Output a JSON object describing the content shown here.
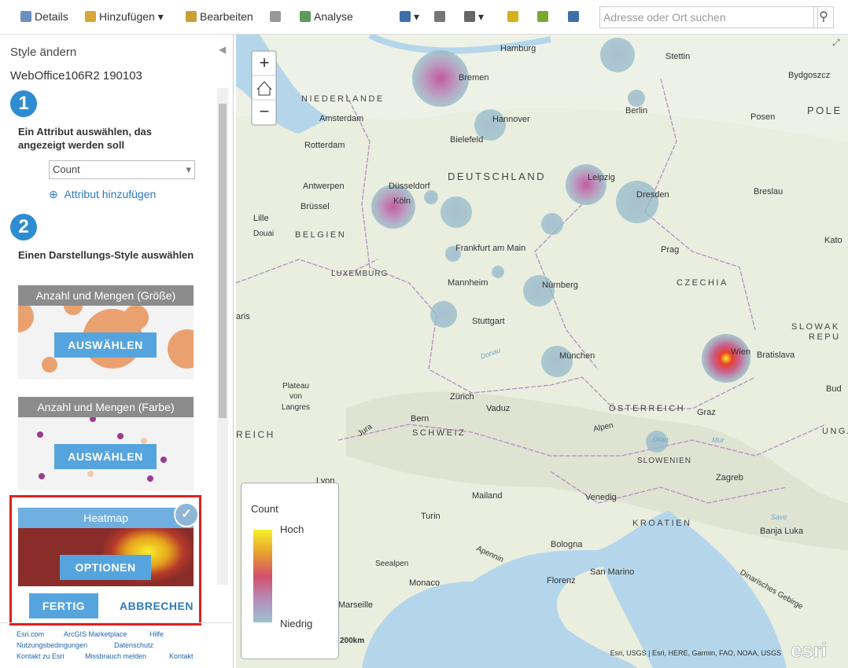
{
  "toolbar": {
    "items": [
      "Details",
      "Hinzufügen",
      "Bearbeiten",
      "Analyse"
    ],
    "search_placeholder": "Adresse oder Ort suchen"
  },
  "panel": {
    "title": "Style ändern",
    "layer": "WebOffice106R2 190103",
    "step1": {
      "number": "1",
      "label": "Ein Attribut auswählen, das angezeigt werden soll",
      "attribute": "Count",
      "add_attribute": "Attribut hinzufügen"
    },
    "step2": {
      "number": "2",
      "label": "Einen Darstellungs-Style auswählen"
    },
    "styles": [
      {
        "name": "Anzahl und Mengen (Größe)",
        "button": "AUSWÄHLEN"
      },
      {
        "name": "Anzahl und Mengen (Farbe)",
        "button": "AUSWÄHLEN"
      },
      {
        "name": "Heatmap",
        "button": "OPTIONEN"
      }
    ],
    "done": "FERTIG",
    "cancel": "ABBRECHEN"
  },
  "footer_links": [
    "Esri.com",
    "ArcGIS Marketplace",
    "Hilfe",
    "Nutzungsbedingungen",
    "Datenschutz",
    "Kontakt zu Esri",
    "Missbrauch melden",
    "Kontakt"
  ],
  "map": {
    "labels": [
      "Hamburg",
      "Stettin",
      "Bremen",
      "Bydgoszcz",
      "NIEDERLANDE",
      "Berlin",
      "POLE",
      "Amsterdam",
      "Hannover",
      "Posen",
      "Rotterdam",
      "Bielefeld",
      "DEUTSCHLAND",
      "Antwerpen",
      "Düsseldorf",
      "Leipzig",
      "Breslau",
      "Brüssel",
      "Köln",
      "Dresden",
      "Lille",
      "Douai",
      "BELGIEN",
      "Kato",
      "Frankfurt am Main",
      "Prag",
      "LUXEMBURG",
      "Mannheim",
      "Nürnberg",
      "CZECHIA",
      "aris",
      "Stuttgart",
      "SLOWAK",
      "REPU",
      "Donau",
      "München",
      "Wien",
      "Bratislava",
      "Plateau",
      "von",
      "Langres",
      "Zürich",
      "Vaduz",
      "ÖSTERREICH",
      "Graz",
      "Bud",
      "Bern",
      "SCHWEIZ",
      "Jura",
      "REICH",
      "Alpen",
      "UNGAR",
      "Drau",
      "Mur",
      "SLOWENIEN",
      "Lyon",
      "Zagreb",
      "Mailand",
      "Venedig",
      "Turin",
      "KROATIEN",
      "Save",
      "Banja Luka",
      "Bologna",
      "Apennin",
      "Seealpen",
      "San Marino",
      "Monaco",
      "Florenz",
      "Dinarisches Gebirge",
      "Marseille"
    ],
    "legend": {
      "title": "Count",
      "high": "Hoch",
      "low": "Niedrig"
    },
    "scale": "200km",
    "attribution": "Esri, USGS | Esri, HERE, Garmin, FAO, NOAA, USGS",
    "logo": "esri"
  }
}
